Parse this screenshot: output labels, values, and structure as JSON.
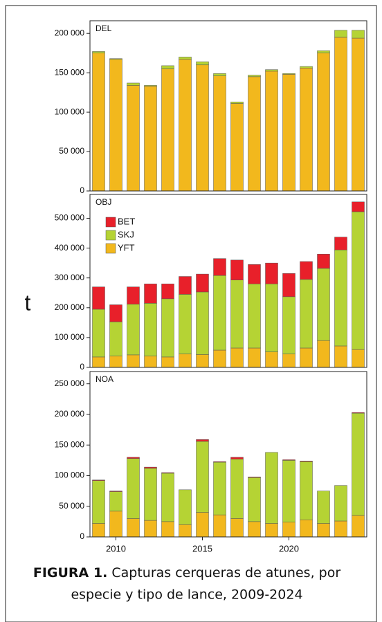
{
  "y_label": "t",
  "caption": {
    "label": "FIGURA 1.",
    "line1": "Capturas cerqueras de atunes, por",
    "line2": "especie y tipo de lance, 2009-2024"
  },
  "chart_data": [
    {
      "type": "bar",
      "stacked": true,
      "title": "DEL",
      "x": [
        2009,
        2010,
        2011,
        2012,
        2013,
        2014,
        2015,
        2016,
        2017,
        2018,
        2019,
        2020,
        2021,
        2022,
        2023,
        2024
      ],
      "xlim": [
        2008.5,
        2024.5
      ],
      "ylim": [
        0,
        216000
      ],
      "yticks": [
        0,
        {
          "value": 50000,
          "label": "50 000"
        },
        {
          "value": 100000,
          "label": "100 000"
        },
        {
          "value": 150000,
          "label": "150 000"
        },
        {
          "value": 200000,
          "label": "200 000"
        }
      ],
      "series": [
        {
          "name": "YFT",
          "color": "#f2b81d",
          "values": [
            175000,
            167000,
            134000,
            133000,
            155000,
            167000,
            160000,
            146000,
            111000,
            145000,
            152000,
            148000,
            156000,
            175000,
            195000,
            194000
          ]
        },
        {
          "name": "SKJ",
          "color": "#b5d334",
          "values": [
            2000,
            1000,
            3000,
            1000,
            4000,
            3000,
            4000,
            3000,
            2000,
            2000,
            2000,
            1000,
            2000,
            3000,
            9000,
            10000
          ]
        }
      ]
    },
    {
      "type": "bar",
      "stacked": true,
      "title": "OBJ",
      "legend": "upper left",
      "x": [
        2009,
        2010,
        2011,
        2012,
        2013,
        2014,
        2015,
        2016,
        2017,
        2018,
        2019,
        2020,
        2021,
        2022,
        2023,
        2024
      ],
      "xlim": [
        2008.5,
        2024.5
      ],
      "ylim": [
        0,
        580000
      ],
      "yticks": [
        0,
        {
          "value": 100000,
          "label": "100 000"
        },
        {
          "value": 200000,
          "label": "200 000"
        },
        {
          "value": 300000,
          "label": "300 000"
        },
        {
          "value": 400000,
          "label": "400 000"
        },
        {
          "value": 500000,
          "label": "500 000"
        }
      ],
      "series": [
        {
          "name": "YFT",
          "color": "#f2b81d",
          "values": [
            35000,
            38000,
            42000,
            38000,
            35000,
            45000,
            43000,
            58000,
            65000,
            65000,
            52000,
            45000,
            65000,
            90000,
            72000,
            60000
          ]
        },
        {
          "name": "SKJ",
          "color": "#b5d334",
          "values": [
            160000,
            115000,
            170000,
            177000,
            195000,
            200000,
            210000,
            250000,
            228000,
            215000,
            228000,
            192000,
            230000,
            242000,
            322000,
            462000
          ]
        },
        {
          "name": "BET",
          "color": "#e8202a",
          "values": [
            75000,
            57000,
            58000,
            65000,
            50000,
            60000,
            60000,
            57000,
            67000,
            65000,
            70000,
            78000,
            60000,
            48000,
            43000,
            33000
          ]
        }
      ]
    },
    {
      "type": "bar",
      "stacked": true,
      "title": "NOA",
      "x": [
        2009,
        2010,
        2011,
        2012,
        2013,
        2014,
        2015,
        2016,
        2017,
        2018,
        2019,
        2020,
        2021,
        2022,
        2023,
        2024
      ],
      "xlim": [
        2008.5,
        2024.5
      ],
      "xticks": [
        2010,
        2015,
        2020
      ],
      "ylim": [
        0,
        270000
      ],
      "yticks": [
        0,
        {
          "value": 50000,
          "label": "50 000"
        },
        {
          "value": 100000,
          "label": "100 000"
        },
        {
          "value": 150000,
          "label": "150 000"
        },
        {
          "value": 200000,
          "label": "200 000"
        },
        {
          "value": 250000,
          "label": "250 000"
        }
      ],
      "series": [
        {
          "name": "YFT",
          "color": "#f2b81d",
          "values": [
            22000,
            42000,
            30000,
            27000,
            25000,
            20000,
            40000,
            36000,
            30000,
            25000,
            22000,
            24000,
            28000,
            22000,
            26000,
            35000
          ]
        },
        {
          "name": "SKJ",
          "color": "#b5d334",
          "values": [
            70000,
            32000,
            98000,
            85000,
            79000,
            57000,
            116000,
            86000,
            97000,
            72000,
            116000,
            101000,
            95000,
            53000,
            58000,
            167000
          ]
        },
        {
          "name": "BET",
          "color": "#e8202a",
          "values": [
            1000,
            1000,
            2000,
            2000,
            1000,
            0,
            3000,
            1000,
            3000,
            1000,
            0,
            1000,
            1000,
            0,
            0,
            1000
          ]
        }
      ]
    }
  ]
}
